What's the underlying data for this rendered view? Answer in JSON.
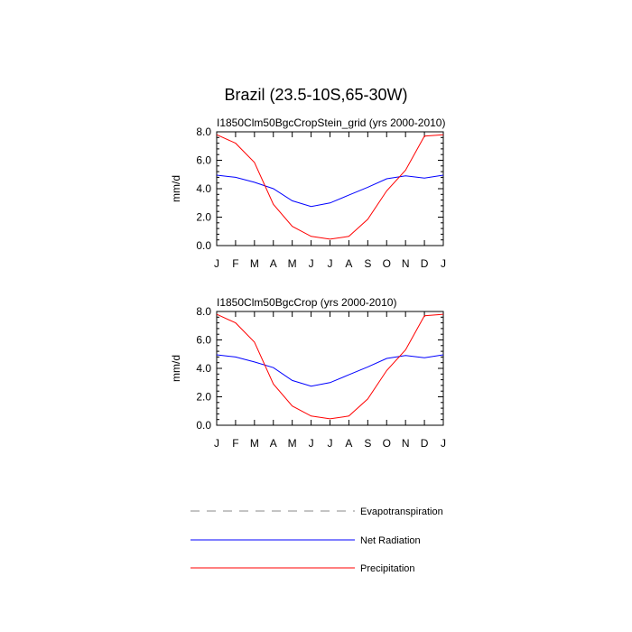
{
  "title": "Brazil (23.5-10S,65-30W)",
  "legend": [
    {
      "label": "Evapotranspiration",
      "color": "#888888",
      "dash": "dashed"
    },
    {
      "label": "Net Radiation",
      "color": "#0000ff",
      "dash": "solid"
    },
    {
      "label": "Precipitation",
      "color": "#ff0000",
      "dash": "solid"
    }
  ],
  "chart_data": [
    {
      "type": "line",
      "title": "I1850Clm50BgcCropStein_grid (yrs 2000-2010)",
      "ylabel": "mm/d",
      "xlabel": "",
      "categories": [
        "J",
        "F",
        "M",
        "A",
        "M",
        "J",
        "J",
        "A",
        "S",
        "O",
        "N",
        "D",
        "J"
      ],
      "ylim": [
        0,
        8
      ],
      "yticks": [
        "0.0",
        "2.0",
        "4.0",
        "6.0",
        "8.0"
      ],
      "series": [
        {
          "name": "Net Radiation",
          "color": "#0000ff",
          "values": [
            4.95,
            4.8,
            4.45,
            4.0,
            3.15,
            2.75,
            3.0,
            3.55,
            4.1,
            4.7,
            4.9,
            4.75,
            4.95
          ]
        },
        {
          "name": "Precipitation",
          "color": "#ff0000",
          "values": [
            7.8,
            7.2,
            5.85,
            2.9,
            1.35,
            0.65,
            0.45,
            0.65,
            1.85,
            3.85,
            5.3,
            7.7,
            7.8
          ]
        }
      ]
    },
    {
      "type": "line",
      "title": "I1850Clm50BgcCrop (yrs 2000-2010)",
      "ylabel": "mm/d",
      "xlabel": "",
      "categories": [
        "J",
        "F",
        "M",
        "A",
        "M",
        "J",
        "J",
        "A",
        "S",
        "O",
        "N",
        "D",
        "J"
      ],
      "ylim": [
        0,
        8
      ],
      "yticks": [
        "0.0",
        "2.0",
        "4.0",
        "6.0",
        "8.0"
      ],
      "series": [
        {
          "name": "Net Radiation",
          "color": "#0000ff",
          "values": [
            4.95,
            4.8,
            4.45,
            4.05,
            3.15,
            2.75,
            3.0,
            3.55,
            4.1,
            4.7,
            4.9,
            4.75,
            4.95
          ]
        },
        {
          "name": "Precipitation",
          "color": "#ff0000",
          "values": [
            7.8,
            7.2,
            5.85,
            2.9,
            1.35,
            0.65,
            0.45,
            0.65,
            1.85,
            3.85,
            5.3,
            7.7,
            7.8
          ]
        }
      ]
    }
  ]
}
